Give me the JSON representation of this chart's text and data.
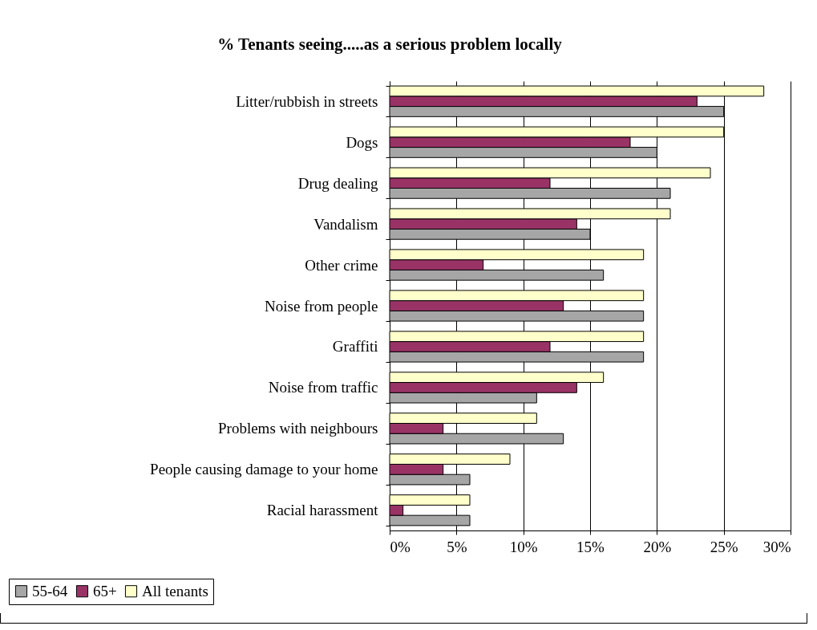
{
  "chart_data": {
    "type": "bar",
    "orientation": "horizontal",
    "title": "% Tenants seeing.....as a serious problem locally",
    "categories": [
      "Litter/rubbish in streets",
      "Dogs",
      "Drug dealing",
      "Vandalism",
      "Other crime",
      "Noise from people",
      "Graffiti",
      "Noise from traffic",
      "Problems with neighbours",
      "People causing damage to your home",
      "Racial harassment"
    ],
    "series": [
      {
        "name": "55-64",
        "color": "#a6a6a6",
        "values": [
          25,
          20,
          21,
          15,
          16,
          19,
          19,
          11,
          13,
          6,
          6
        ]
      },
      {
        "name": "65+",
        "color": "#993366",
        "values": [
          23,
          18,
          12,
          14,
          7,
          13,
          12,
          14,
          4,
          4,
          1
        ]
      },
      {
        "name": "All tenants",
        "color": "#ffffcc",
        "values": [
          28,
          25,
          24,
          21,
          19,
          19,
          19,
          16,
          11,
          9,
          6
        ]
      }
    ],
    "xlim": [
      0,
      30
    ],
    "xticks": [
      {
        "value": 0,
        "label": "0%"
      },
      {
        "value": 5,
        "label": "5%"
      },
      {
        "value": 10,
        "label": "10%"
      },
      {
        "value": 15,
        "label": "15%"
      },
      {
        "value": 20,
        "label": "20%"
      },
      {
        "value": 25,
        "label": "25%"
      },
      {
        "value": 30,
        "label": "30%"
      }
    ],
    "grid": "x",
    "legend": "bottom left"
  }
}
